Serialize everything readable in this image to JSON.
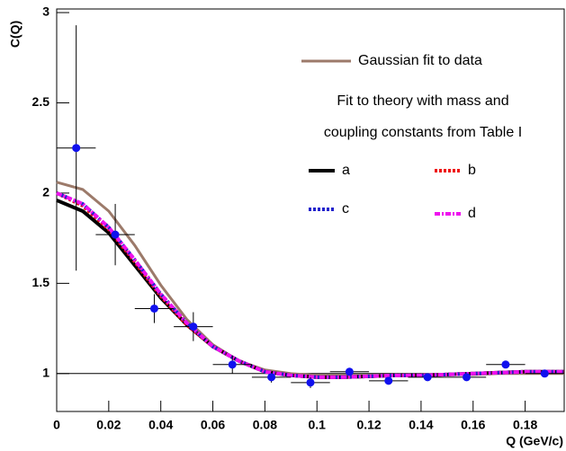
{
  "chart_data": {
    "type": "line",
    "xlabel": "Q (GeV/c)",
    "ylabel": "C(Q)",
    "legend_header": [
      "Fit to theory with mass and",
      "coupling constants from Table I"
    ],
    "x": [
      0,
      0.01,
      0.02,
      0.03,
      0.04,
      0.05,
      0.06,
      0.07,
      0.08,
      0.09,
      0.1,
      0.11,
      0.12,
      0.13,
      0.14,
      0.15,
      0.16,
      0.17,
      0.18,
      0.19,
      0.195
    ],
    "series": [
      {
        "name": "Gaussian fit to data",
        "color": "#9c7a6a",
        "style": "solid",
        "width": 3,
        "values": [
          2.06,
          2.02,
          1.9,
          1.71,
          1.49,
          1.3,
          1.16,
          1.07,
          1.02,
          1.0,
          0.99,
          0.99,
          0.99,
          0.99,
          0.99,
          0.995,
          0.995,
          1.0,
          1.0,
          1.0,
          1.0
        ]
      },
      {
        "name": "a",
        "color": "#000000",
        "style": "solid",
        "width": 4,
        "values": [
          1.96,
          1.9,
          1.78,
          1.6,
          1.42,
          1.27,
          1.15,
          1.07,
          1.01,
          0.99,
          0.98,
          0.98,
          0.985,
          0.99,
          0.99,
          0.995,
          1.0,
          1.005,
          1.01,
          1.01,
          1.01
        ]
      },
      {
        "name": "b",
        "color": "#ee1111",
        "style": "dot",
        "width": 4,
        "values": [
          2.0,
          1.93,
          1.8,
          1.62,
          1.43,
          1.27,
          1.15,
          1.07,
          1.01,
          0.99,
          0.98,
          0.98,
          0.985,
          0.99,
          0.99,
          0.995,
          1.0,
          1.005,
          1.01,
          1.01,
          1.01
        ]
      },
      {
        "name": "c",
        "color": "#2222cc",
        "style": "dot",
        "width": 4,
        "values": [
          2.0,
          1.94,
          1.81,
          1.63,
          1.44,
          1.28,
          1.15,
          1.07,
          1.01,
          0.99,
          0.98,
          0.98,
          0.985,
          0.99,
          0.99,
          0.995,
          1.0,
          1.005,
          1.01,
          1.01,
          1.01
        ]
      },
      {
        "name": "d",
        "color": "#ee11ee",
        "style": "dashdot",
        "width": 4,
        "values": [
          2.0,
          1.94,
          1.81,
          1.63,
          1.44,
          1.28,
          1.15,
          1.07,
          1.01,
          0.99,
          0.98,
          0.98,
          0.985,
          0.99,
          0.99,
          0.995,
          1.0,
          1.005,
          1.01,
          1.01,
          1.01
        ]
      }
    ],
    "points": {
      "color": "#1010ee",
      "x": [
        0.0075,
        0.0225,
        0.0375,
        0.0525,
        0.0675,
        0.0825,
        0.0975,
        0.1125,
        0.1275,
        0.1425,
        0.1575,
        0.1725,
        0.1875
      ],
      "xerr": [
        0.0075,
        0.0075,
        0.0075,
        0.0075,
        0.0075,
        0.0075,
        0.0075,
        0.0075,
        0.0075,
        0.0075,
        0.0075,
        0.0075,
        0.0075
      ],
      "y": [
        2.25,
        1.77,
        1.36,
        1.26,
        1.05,
        0.98,
        0.95,
        1.01,
        0.96,
        0.98,
        0.98,
        1.05,
        1.0
      ],
      "yerr": [
        0.68,
        0.17,
        0.08,
        0.08,
        0.05,
        0.03,
        0.03,
        0.02,
        0.02,
        0.02,
        0.02,
        0.02,
        0.02
      ]
    },
    "reference_line": 1,
    "xlim": [
      0,
      0.195
    ],
    "ylim": [
      0.79,
      3.02
    ],
    "xticks": [
      0,
      0.02,
      0.04,
      0.06,
      0.08,
      0.1,
      0.12,
      0.14,
      0.16,
      0.18
    ],
    "yticks": [
      1,
      1.5,
      2,
      2.5,
      3
    ]
  }
}
